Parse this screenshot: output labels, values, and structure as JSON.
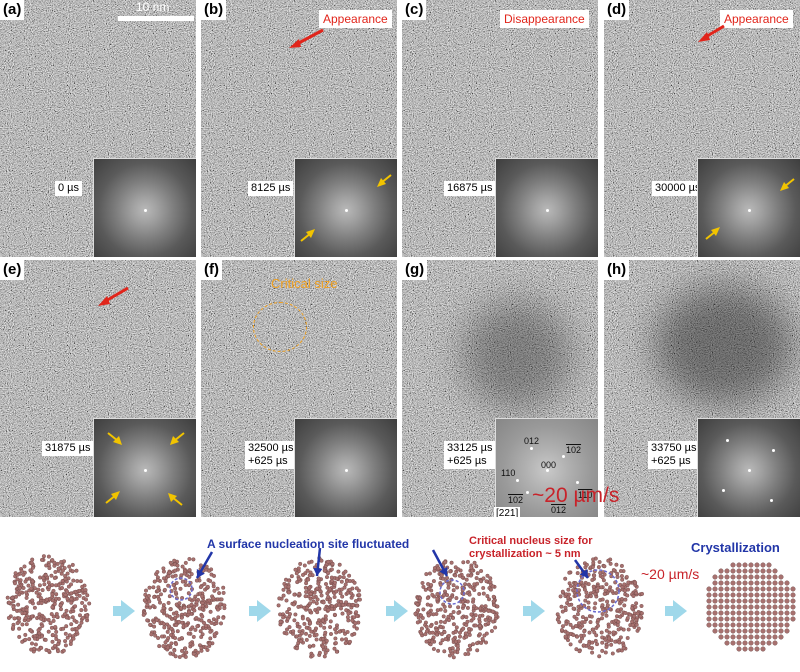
{
  "scalebar": "10 nm",
  "panels": [
    {
      "id": "a",
      "label": "(a)",
      "time": "0 µs",
      "tag": "",
      "sub": ""
    },
    {
      "id": "b",
      "label": "(b)",
      "time": "8125 µs",
      "tag": "Appearance",
      "sub": ""
    },
    {
      "id": "c",
      "label": "(c)",
      "time": "16875 µs",
      "tag": "Disappearance",
      "sub": ""
    },
    {
      "id": "d",
      "label": "(d)",
      "time": "30000 µs",
      "tag": "Appearance",
      "sub": ""
    },
    {
      "id": "e",
      "label": "(e)",
      "time": "31875 µs",
      "tag": "",
      "sub": ""
    },
    {
      "id": "f",
      "label": "(f)",
      "time": "32500 µs",
      "tag": "",
      "sub": "+625 µs"
    },
    {
      "id": "g",
      "label": "(g)",
      "time": "33125 µs",
      "tag": "",
      "sub": "+625 µs"
    },
    {
      "id": "h",
      "label": "(h)",
      "time": "33750 µs",
      "tag": "",
      "sub": "+625 µs"
    }
  ],
  "critical_size": "Critical size",
  "zone_axis": "[221]",
  "miller": {
    "m012": "012",
    "m102": "102",
    "m110": "110",
    "m000": "000",
    "m110b": "110",
    "m102b": "102",
    "m012b": "012"
  },
  "rate_big": "~20 µm/s",
  "bottom": {
    "label1": "A surface nucleation site fluctuated",
    "label2": "Critical nucleus size for",
    "label2b": "crystallization ~ 5 nm",
    "label3": "Crystallization",
    "rate": "~20 µm/s"
  },
  "colors": {
    "red": "#e1251b",
    "blue": "#2236a8",
    "yellow": "#f2c400",
    "orange": "#f0a020",
    "arrow": "#9fd8ea",
    "atom": "#a7716f"
  }
}
